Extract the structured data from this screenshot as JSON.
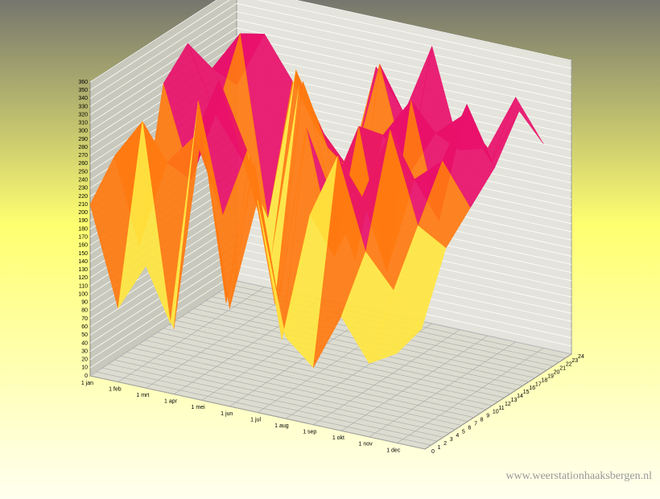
{
  "chart_data": {
    "type": "surface3d",
    "categories": [
      "1 jan",
      "1 feb",
      "1 mrt",
      "1 apr",
      "1 mei",
      "1 jun",
      "1 jul",
      "1 aug",
      "1 sep",
      "1 okt",
      "1 nov",
      "1 dec"
    ],
    "hours": [
      0,
      4,
      8,
      12,
      16,
      20,
      24
    ],
    "z": [
      [
        210,
        250,
        120,
        300,
        330,
        280,
        240
      ],
      [
        90,
        300,
        230,
        190,
        250,
        330,
        310
      ],
      [
        150,
        60,
        270,
        320,
        200,
        110,
        260
      ],
      [
        80,
        340,
        180,
        240,
        90,
        300,
        200
      ],
      [
        330,
        100,
        260,
        60,
        310,
        230,
        160
      ],
      [
        120,
        280,
        90,
        340,
        240,
        190,
        300
      ],
      [
        260,
        70,
        310,
        210,
        110,
        330,
        250
      ],
      [
        100,
        230,
        160,
        300,
        270,
        200,
        340
      ],
      [
        70,
        310,
        240,
        130,
        320,
        260,
        220
      ],
      [
        140,
        200,
        330,
        250,
        180,
        290,
        230
      ],
      [
        90,
        160,
        220,
        280,
        330,
        240,
        300
      ],
      [
        110,
        120,
        200,
        230,
        260,
        310,
        250
      ]
    ],
    "ylim": [
      0,
      24
    ],
    "yticks": [
      0,
      1,
      2,
      3,
      4,
      5,
      6,
      7,
      8,
      9,
      10,
      11,
      12,
      13,
      14,
      15,
      16,
      17,
      18,
      19,
      20,
      21,
      22,
      23,
      24
    ],
    "zlim": [
      0,
      360
    ],
    "zticks": [
      0,
      10,
      20,
      30,
      40,
      50,
      60,
      70,
      80,
      90,
      100,
      110,
      120,
      130,
      140,
      150,
      160,
      170,
      180,
      190,
      200,
      210,
      220,
      230,
      240,
      250,
      260,
      270,
      280,
      290,
      300,
      310,
      320,
      330,
      340,
      350,
      360
    ],
    "colors": [
      "#9c9cff",
      "#c8f5b0",
      "#ffe640",
      "#ff7a10",
      "#e8106a",
      "#a060ff"
    ],
    "grid": true,
    "watermark": "www.weerstationhaaksbergen.nl"
  }
}
